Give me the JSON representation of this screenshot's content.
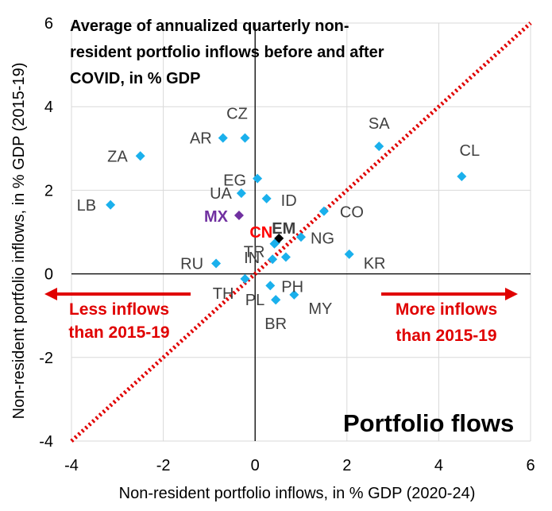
{
  "chart_data": {
    "type": "scatter",
    "title_lines": [
      "Average of annualized quarterly non-",
      "resident portfolio inflows before and after",
      "COVID, in % GDP"
    ],
    "watermark": "Portfolio flows",
    "xlabel": "Non-resident portfolio inflows, in % GDP (2020-24)",
    "ylabel": "Non-resident portfolio inflows, in % GDP (2015-19)",
    "xlim": [
      -4,
      6
    ],
    "ylim": [
      -4,
      6
    ],
    "xticks": [
      -4,
      -2,
      0,
      2,
      4,
      6
    ],
    "yticks": [
      -4,
      -2,
      0,
      2,
      4,
      6
    ],
    "grid": true,
    "reference_line": {
      "type": "45-degree",
      "from": [
        -4,
        -4
      ],
      "to": [
        6,
        6
      ],
      "style": "dotted",
      "color": "#e00000"
    },
    "annotations": [
      {
        "lines": [
          "Less inflows",
          "than 2015-19"
        ],
        "arrow": "left",
        "color": "#e00000"
      },
      {
        "lines": [
          "More inflows",
          "than 2015-19"
        ],
        "arrow": "right",
        "color": "#e00000"
      }
    ],
    "points": [
      {
        "label": "CZ",
        "x": -0.22,
        "y": 3.25,
        "color": "#1ab0ec",
        "label_color": "#404040",
        "bold": false
      },
      {
        "label": "AR",
        "x": -0.7,
        "y": 3.25,
        "color": "#1ab0ec",
        "label_color": "#404040",
        "bold": false
      },
      {
        "label": "ZA",
        "x": -2.5,
        "y": 2.82,
        "color": "#1ab0ec",
        "label_color": "#404040",
        "bold": false
      },
      {
        "label": "EG",
        "x": 0.05,
        "y": 2.28,
        "color": "#1ab0ec",
        "label_color": "#404040",
        "bold": false
      },
      {
        "label": "ID",
        "x": 0.25,
        "y": 1.8,
        "color": "#1ab0ec",
        "label_color": "#404040",
        "bold": false
      },
      {
        "label": "UA",
        "x": -0.3,
        "y": 1.93,
        "color": "#1ab0ec",
        "label_color": "#404040",
        "bold": false
      },
      {
        "label": "LB",
        "x": -3.15,
        "y": 1.65,
        "color": "#1ab0ec",
        "label_color": "#404040",
        "bold": false
      },
      {
        "label": "MX",
        "x": -0.35,
        "y": 1.4,
        "color": "#7030a0",
        "label_color": "#7030a0",
        "bold": true
      },
      {
        "label": "CN",
        "x": 0.45,
        "y": 0.75,
        "color": "#1ab0ec",
        "label_color": "#ff0000",
        "bold": true
      },
      {
        "label": "EM",
        "x": 0.52,
        "y": 0.85,
        "color": "#000000",
        "label_color": "#404040",
        "bold": true
      },
      {
        "label": "TR",
        "x": 0.42,
        "y": 0.72,
        "color": "#1ab0ec",
        "label_color": "#404040",
        "bold": false
      },
      {
        "label": "NG",
        "x": 1.0,
        "y": 0.88,
        "color": "#1ab0ec",
        "label_color": "#404040",
        "bold": false
      },
      {
        "label": "CO",
        "x": 1.5,
        "y": 1.5,
        "color": "#1ab0ec",
        "label_color": "#404040",
        "bold": false
      },
      {
        "label": "SA",
        "x": 2.7,
        "y": 3.05,
        "color": "#1ab0ec",
        "label_color": "#404040",
        "bold": false
      },
      {
        "label": "CL",
        "x": 4.5,
        "y": 2.33,
        "color": "#1ab0ec",
        "label_color": "#404040",
        "bold": false
      },
      {
        "label": "KR",
        "x": 2.05,
        "y": 0.47,
        "color": "#1ab0ec",
        "label_color": "#404040",
        "bold": false
      },
      {
        "label": "IN",
        "x": 0.38,
        "y": 0.35,
        "color": "#1ab0ec",
        "label_color": "#404040",
        "bold": false
      },
      {
        "label": "",
        "x": 0.67,
        "y": 0.4,
        "color": "#1ab0ec",
        "label_color": "#404040",
        "bold": false
      },
      {
        "label": "RU",
        "x": -0.85,
        "y": 0.25,
        "color": "#1ab0ec",
        "label_color": "#404040",
        "bold": false
      },
      {
        "label": "TH",
        "x": -0.22,
        "y": -0.12,
        "color": "#1ab0ec",
        "label_color": "#404040",
        "bold": false
      },
      {
        "label": "PH",
        "x": 0.33,
        "y": -0.28,
        "color": "#1ab0ec",
        "label_color": "#404040",
        "bold": false
      },
      {
        "label": "PL",
        "x": 0.45,
        "y": -0.62,
        "color": "#1ab0ec",
        "label_color": "#404040",
        "bold": false
      },
      {
        "label": "MY",
        "x": 0.85,
        "y": -0.5,
        "color": "#1ab0ec",
        "label_color": "#404040",
        "bold": false
      },
      {
        "label": "BR",
        "x": 0.45,
        "y": -0.62,
        "color": "#1ab0ec",
        "label_color": "#404040",
        "bold": false
      }
    ]
  }
}
